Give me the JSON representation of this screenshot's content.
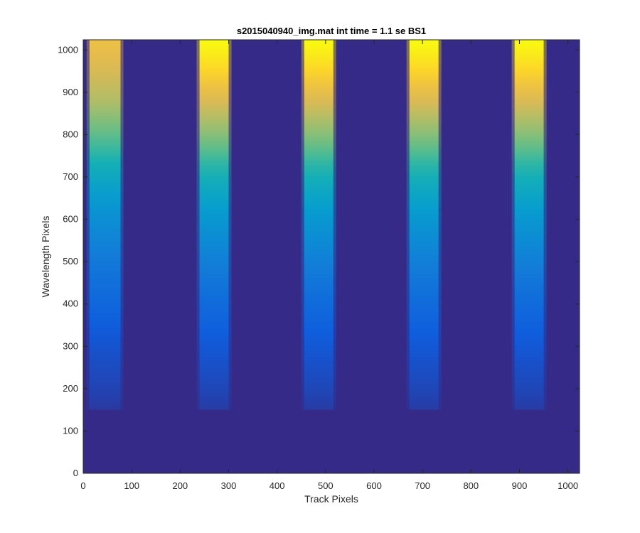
{
  "chart_data": {
    "type": "heatmap",
    "title": "s2015040940_img.mat int time = 1.1 se   BS1",
    "xlabel": "Track Pixels",
    "ylabel": "Wavelength Pixels",
    "xlim": [
      0,
      1024
    ],
    "ylim": [
      0,
      1024
    ],
    "xticks": [
      0,
      100,
      200,
      300,
      400,
      500,
      600,
      700,
      800,
      900,
      1000
    ],
    "yticks": [
      0,
      100,
      200,
      300,
      400,
      500,
      600,
      700,
      800,
      900,
      1000
    ],
    "grid": false,
    "colormap": "parula",
    "background_color": "#352a87",
    "bands": [
      {
        "x_center": 45,
        "x_halfwidth": 32,
        "y_min": 150,
        "peak_intensity": 0.9
      },
      {
        "x_center": 270,
        "x_halfwidth": 30,
        "y_min": 150,
        "peak_intensity": 1.0
      },
      {
        "x_center": 486,
        "x_halfwidth": 30,
        "y_min": 150,
        "peak_intensity": 1.0
      },
      {
        "x_center": 703,
        "x_halfwidth": 30,
        "y_min": 150,
        "peak_intensity": 1.0
      },
      {
        "x_center": 920,
        "x_halfwidth": 30,
        "y_min": 150,
        "peak_intensity": 1.0
      }
    ]
  }
}
